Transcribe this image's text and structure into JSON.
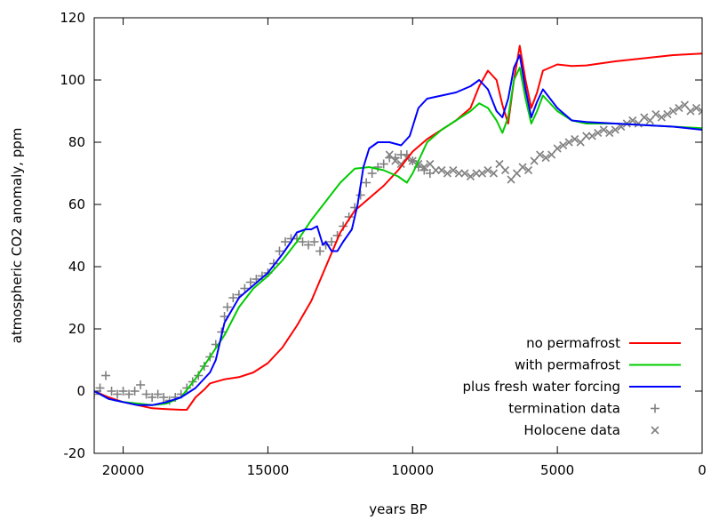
{
  "chart_data": {
    "type": "line",
    "title": "",
    "xlabel": "years BP",
    "ylabel": "atmospheric CO2 anomaly, ppm",
    "xlim": [
      21000,
      0
    ],
    "ylim": [
      -20,
      120
    ],
    "x_reversed": true,
    "x_ticks": [
      20000,
      15000,
      10000,
      5000,
      0
    ],
    "y_ticks": [
      -20,
      0,
      20,
      40,
      60,
      80,
      100,
      120
    ],
    "grid": false,
    "legend_position": "bottom-right",
    "series": [
      {
        "name": "no permafrost",
        "color": "#ff0000",
        "style": "line",
        "points": [
          [
            21000,
            0
          ],
          [
            20500,
            -2
          ],
          [
            20000,
            -3.5
          ],
          [
            19500,
            -4.5
          ],
          [
            19000,
            -5.5
          ],
          [
            18500,
            -5.8
          ],
          [
            18000,
            -6
          ],
          [
            17800,
            -6
          ],
          [
            17500,
            -2
          ],
          [
            17200,
            0.5
          ],
          [
            17000,
            2.5
          ],
          [
            16500,
            3.8
          ],
          [
            16000,
            4.5
          ],
          [
            15500,
            6
          ],
          [
            15000,
            9
          ],
          [
            14500,
            14
          ],
          [
            14000,
            21
          ],
          [
            13500,
            29
          ],
          [
            13000,
            40
          ],
          [
            12500,
            51
          ],
          [
            12000,
            58
          ],
          [
            11500,
            62
          ],
          [
            11000,
            66
          ],
          [
            10500,
            71
          ],
          [
            10000,
            77
          ],
          [
            9500,
            81
          ],
          [
            9000,
            84
          ],
          [
            8500,
            87
          ],
          [
            8000,
            91
          ],
          [
            7700,
            98
          ],
          [
            7400,
            103
          ],
          [
            7100,
            100
          ],
          [
            6900,
            92
          ],
          [
            6700,
            86
          ],
          [
            6500,
            100
          ],
          [
            6300,
            111
          ],
          [
            6100,
            100
          ],
          [
            5900,
            91
          ],
          [
            5700,
            96
          ],
          [
            5500,
            103
          ],
          [
            5000,
            105
          ],
          [
            4500,
            104.5
          ],
          [
            4000,
            104.7
          ],
          [
            3000,
            106
          ],
          [
            2000,
            107
          ],
          [
            1000,
            108
          ],
          [
            0,
            108.5
          ]
        ]
      },
      {
        "name": "with permafrost",
        "color": "#00cc00",
        "style": "line",
        "points": [
          [
            21000,
            0
          ],
          [
            20500,
            -2.5
          ],
          [
            20000,
            -3.5
          ],
          [
            19500,
            -4
          ],
          [
            19000,
            -4.5
          ],
          [
            18500,
            -4
          ],
          [
            18000,
            -2
          ],
          [
            17500,
            4
          ],
          [
            17000,
            11
          ],
          [
            16500,
            18
          ],
          [
            16000,
            27
          ],
          [
            15500,
            33
          ],
          [
            15000,
            37
          ],
          [
            14500,
            42
          ],
          [
            14000,
            48
          ],
          [
            13500,
            55
          ],
          [
            13000,
            61
          ],
          [
            12500,
            67
          ],
          [
            12000,
            71.5
          ],
          [
            11500,
            72
          ],
          [
            11000,
            71
          ],
          [
            10500,
            69
          ],
          [
            10200,
            67
          ],
          [
            10000,
            70
          ],
          [
            9500,
            80
          ],
          [
            9000,
            84
          ],
          [
            8500,
            87
          ],
          [
            8000,
            90
          ],
          [
            7700,
            92.5
          ],
          [
            7400,
            91
          ],
          [
            7100,
            87
          ],
          [
            6900,
            83
          ],
          [
            6700,
            88
          ],
          [
            6500,
            100
          ],
          [
            6300,
            104
          ],
          [
            6100,
            94
          ],
          [
            5900,
            86
          ],
          [
            5700,
            90
          ],
          [
            5500,
            95
          ],
          [
            5000,
            90
          ],
          [
            4500,
            87
          ],
          [
            4000,
            86
          ],
          [
            3000,
            86
          ],
          [
            2000,
            85.5
          ],
          [
            1000,
            85
          ],
          [
            0,
            84.5
          ]
        ]
      },
      {
        "name": "plus fresh water forcing",
        "color": "#0000ff",
        "style": "line",
        "points": [
          [
            21000,
            0
          ],
          [
            20500,
            -2.5
          ],
          [
            20000,
            -3.5
          ],
          [
            19500,
            -4.5
          ],
          [
            19000,
            -4.5
          ],
          [
            18500,
            -3.5
          ],
          [
            18000,
            -2
          ],
          [
            17500,
            1
          ],
          [
            17000,
            6
          ],
          [
            16800,
            10
          ],
          [
            16500,
            22
          ],
          [
            16000,
            30
          ],
          [
            15500,
            34
          ],
          [
            15000,
            38
          ],
          [
            14500,
            44
          ],
          [
            14200,
            48
          ],
          [
            14000,
            51
          ],
          [
            13700,
            52
          ],
          [
            13500,
            52
          ],
          [
            13300,
            53
          ],
          [
            13100,
            47
          ],
          [
            13000,
            48
          ],
          [
            12800,
            45
          ],
          [
            12600,
            45
          ],
          [
            12400,
            48
          ],
          [
            12100,
            52
          ],
          [
            11900,
            60
          ],
          [
            11700,
            72
          ],
          [
            11500,
            78
          ],
          [
            11200,
            80
          ],
          [
            10800,
            80
          ],
          [
            10400,
            79
          ],
          [
            10100,
            82
          ],
          [
            10000,
            85
          ],
          [
            9800,
            91
          ],
          [
            9500,
            94
          ],
          [
            9000,
            95
          ],
          [
            8500,
            96
          ],
          [
            8000,
            98
          ],
          [
            7700,
            100
          ],
          [
            7400,
            97
          ],
          [
            7100,
            90
          ],
          [
            6900,
            88
          ],
          [
            6700,
            94
          ],
          [
            6500,
            104
          ],
          [
            6300,
            108
          ],
          [
            6100,
            97
          ],
          [
            5900,
            88
          ],
          [
            5700,
            93
          ],
          [
            5500,
            97
          ],
          [
            5000,
            91
          ],
          [
            4500,
            87
          ],
          [
            4000,
            86.5
          ],
          [
            3000,
            86
          ],
          [
            2000,
            85.5
          ],
          [
            1000,
            85
          ],
          [
            0,
            84
          ]
        ]
      },
      {
        "name": "termination data",
        "color": "#808080",
        "style": "plus-points",
        "points": [
          [
            21000,
            -1
          ],
          [
            20800,
            1
          ],
          [
            20600,
            5
          ],
          [
            20400,
            0
          ],
          [
            20200,
            -1
          ],
          [
            20000,
            0
          ],
          [
            19800,
            -1
          ],
          [
            19600,
            0
          ],
          [
            19400,
            2
          ],
          [
            19200,
            -1
          ],
          [
            19000,
            -2
          ],
          [
            18800,
            -1
          ],
          [
            18600,
            -2
          ],
          [
            18400,
            -3
          ],
          [
            18200,
            -2
          ],
          [
            18000,
            -1
          ],
          [
            17800,
            1
          ],
          [
            17600,
            3
          ],
          [
            17400,
            5
          ],
          [
            17200,
            8
          ],
          [
            17000,
            11
          ],
          [
            16800,
            15
          ],
          [
            16600,
            19
          ],
          [
            16500,
            24
          ],
          [
            16400,
            27
          ],
          [
            16200,
            30
          ],
          [
            16000,
            31
          ],
          [
            15800,
            33
          ],
          [
            15600,
            35
          ],
          [
            15400,
            36
          ],
          [
            15200,
            37
          ],
          [
            15000,
            38
          ],
          [
            14800,
            41
          ],
          [
            14600,
            45
          ],
          [
            14400,
            48
          ],
          [
            14200,
            49
          ],
          [
            14000,
            49
          ],
          [
            13800,
            48
          ],
          [
            13600,
            47
          ],
          [
            13400,
            48
          ],
          [
            13200,
            45
          ],
          [
            13000,
            47
          ],
          [
            12800,
            48
          ],
          [
            12600,
            50
          ],
          [
            12400,
            53
          ],
          [
            12200,
            56
          ],
          [
            12000,
            59
          ],
          [
            11800,
            63
          ],
          [
            11600,
            67
          ],
          [
            11400,
            70
          ],
          [
            11200,
            72
          ],
          [
            11000,
            73
          ],
          [
            10800,
            75
          ],
          [
            10600,
            75
          ],
          [
            10400,
            76
          ],
          [
            10200,
            76
          ],
          [
            10000,
            74
          ],
          [
            9800,
            72
          ],
          [
            9600,
            71
          ],
          [
            9400,
            70
          ]
        ]
      },
      {
        "name": "Holocene data",
        "color": "#808080",
        "style": "x-points",
        "points": [
          [
            10800,
            76
          ],
          [
            10600,
            74
          ],
          [
            10400,
            73
          ],
          [
            10200,
            75
          ],
          [
            10000,
            74
          ],
          [
            9800,
            73
          ],
          [
            9600,
            72
          ],
          [
            9400,
            73
          ],
          [
            9200,
            71
          ],
          [
            9000,
            71
          ],
          [
            8800,
            70
          ],
          [
            8600,
            71
          ],
          [
            8400,
            70
          ],
          [
            8200,
            70
          ],
          [
            8000,
            69
          ],
          [
            7800,
            70
          ],
          [
            7600,
            70
          ],
          [
            7400,
            71
          ],
          [
            7200,
            70
          ],
          [
            7000,
            73
          ],
          [
            6800,
            71
          ],
          [
            6600,
            68
          ],
          [
            6400,
            70
          ],
          [
            6200,
            72
          ],
          [
            6000,
            71
          ],
          [
            5800,
            74
          ],
          [
            5600,
            76
          ],
          [
            5400,
            75
          ],
          [
            5200,
            76
          ],
          [
            5000,
            78
          ],
          [
            4800,
            79
          ],
          [
            4600,
            80
          ],
          [
            4400,
            81
          ],
          [
            4200,
            80
          ],
          [
            4000,
            82
          ],
          [
            3800,
            82
          ],
          [
            3600,
            83
          ],
          [
            3400,
            84
          ],
          [
            3200,
            83
          ],
          [
            3000,
            84
          ],
          [
            2800,
            85
          ],
          [
            2600,
            86
          ],
          [
            2400,
            87
          ],
          [
            2200,
            86
          ],
          [
            2000,
            88
          ],
          [
            1800,
            87
          ],
          [
            1600,
            89
          ],
          [
            1400,
            88
          ],
          [
            1200,
            89
          ],
          [
            1000,
            90
          ],
          [
            800,
            91
          ],
          [
            600,
            92
          ],
          [
            400,
            90
          ],
          [
            200,
            91
          ],
          [
            0,
            90
          ]
        ]
      }
    ]
  }
}
